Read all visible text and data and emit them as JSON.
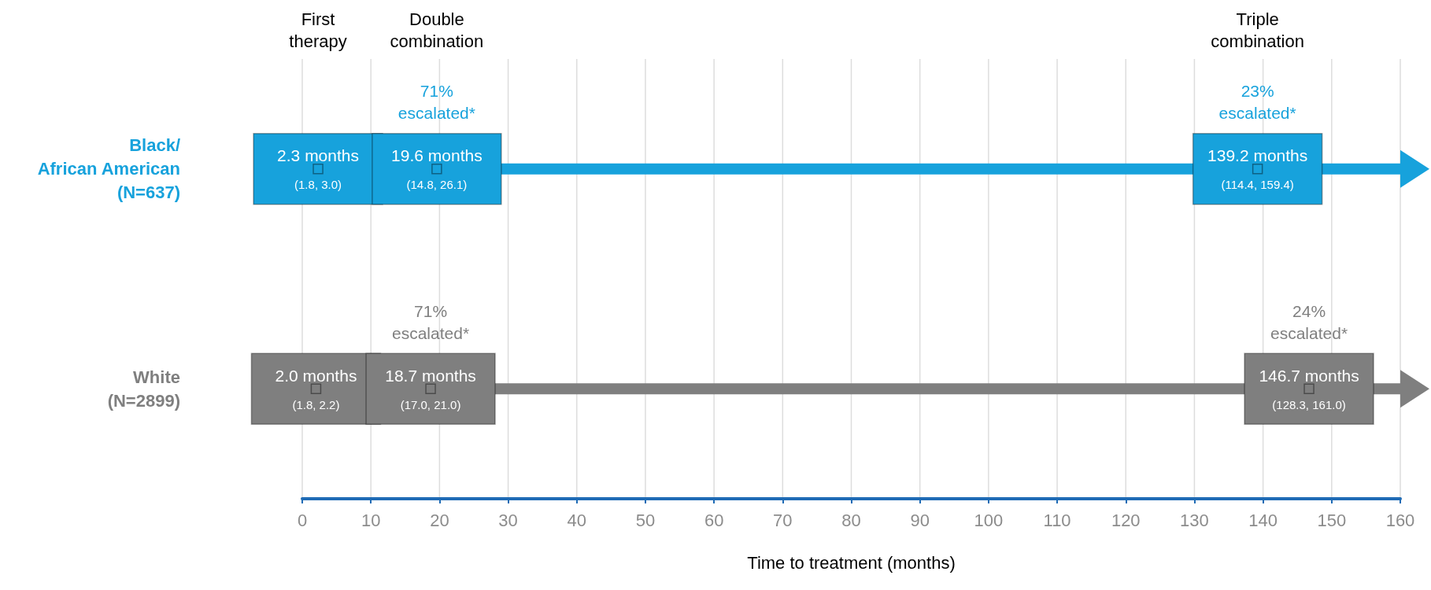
{
  "chart_data": {
    "type": "scatter",
    "orientation": "horizontal",
    "xlabel": "Time to treatment (months)",
    "categories": [
      "Black/\nAfrican American\n(N=637)",
      "White\n(N=2899)"
    ],
    "series": [
      {
        "colors": [
          "#17a2dc",
          "#7f7f7f"
        ],
        "values": [
          2.3,
          2.0
        ],
        "value_labels": [
          "2.3 months\n(1.8, 3.0)",
          "2.0 months\n(1.8, 2.2)"
        ]
      },
      {
        "colors": [
          "#17a2dc",
          "#7f7f7f"
        ],
        "values": [
          19.6,
          18.7
        ],
        "value_labels": [
          "19.6 months\n(14.8, 26.1)",
          "18.7 months\n(17.0, 21.0)"
        ]
      },
      {
        "colors": [
          "#17a2dc",
          "#7f7f7f"
        ],
        "values": [
          139.2,
          146.7
        ],
        "value_labels": [
          "139.2 months\n(114.4, 159.4)",
          "146.7 months\n(128.3, 161.0)"
        ]
      }
    ],
    "annotations": [
      "First\ntherapy",
      "Double\ncombination",
      "Triple\ncombination",
      {
        "text": "71%\nescalated*",
        "x": 19.6,
        "y": "Black/\nAfrican American\n(N=637)"
      },
      {
        "text": "23%\nescalated*",
        "x": 139.2,
        "y": "Black/\nAfrican American\n(N=637)"
      },
      {
        "text": "71%\nescalated*",
        "x": 18.7,
        "y": "White\n(N=2899)"
      },
      {
        "text": "24%\nescalated*",
        "x": 146.7,
        "y": "White\n(N=2899)"
      }
    ],
    "xlim": [
      0,
      160
    ],
    "xticks": [
      0,
      10,
      20,
      30,
      40,
      50,
      60,
      70,
      80,
      90,
      100,
      110,
      120,
      130,
      140,
      150,
      160
    ],
    "grid": "x",
    "marker": "square"
  }
}
